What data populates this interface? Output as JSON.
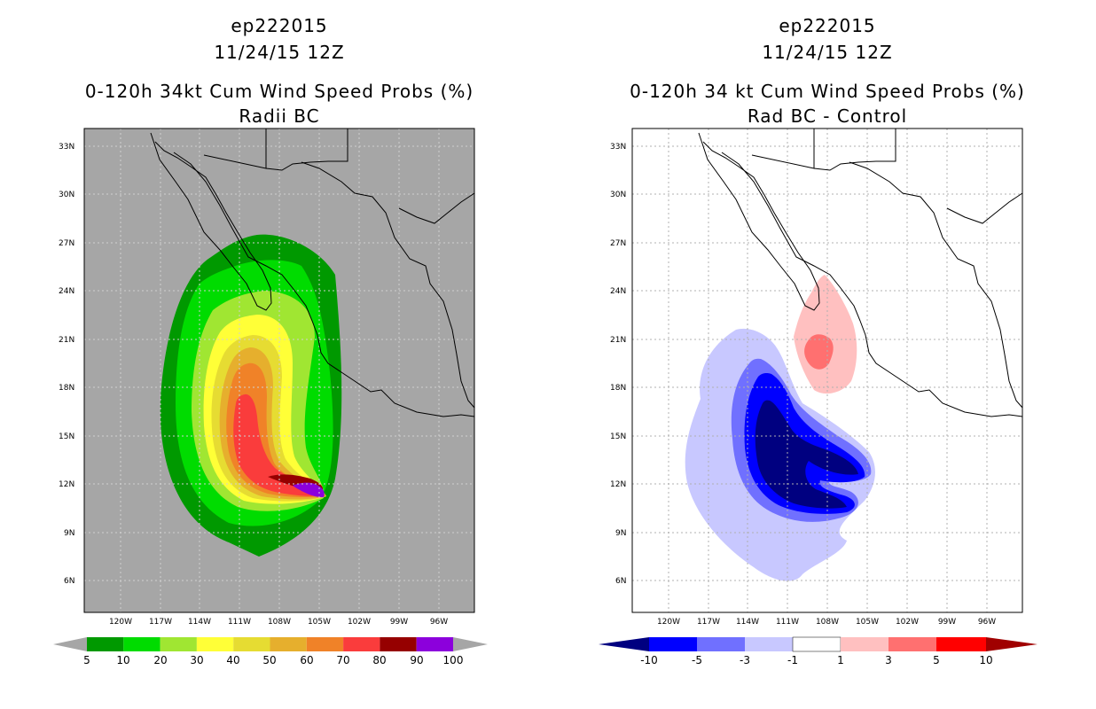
{
  "left": {
    "storm_id": "ep222015",
    "datetime": "11/24/15 12Z",
    "title": "0-120h 34kt Cum Wind Speed Probs (%)",
    "subtitle": "Radii BC",
    "background_color": "#a6a6a6",
    "colorbar": {
      "colors": [
        "#009900",
        "#00dc00",
        "#a0e632",
        "#ffff37",
        "#e6dc32",
        "#e6af2d",
        "#f08228",
        "#fa3c3c",
        "#960000",
        "#8c00dc"
      ],
      "labels": [
        "5",
        "10",
        "20",
        "30",
        "40",
        "50",
        "60",
        "70",
        "80",
        "90",
        "100"
      ]
    }
  },
  "right": {
    "storm_id": "ep222015",
    "datetime": "11/24/15 12Z",
    "title": "0-120h 34 kt Cum Wind Speed Probs (%)",
    "subtitle": "Rad BC - Control",
    "background_color": "#ffffff",
    "colorbar": {
      "colors": [
        "#000080",
        "#0000ff",
        "#7070ff",
        "#c8c8ff",
        "#ffffff",
        "#ffc0c0",
        "#ff7070",
        "#ff0000",
        "#a00000"
      ],
      "labels": [
        "-10",
        "-5",
        "-3",
        "-1",
        "1",
        "3",
        "5",
        "10"
      ]
    }
  },
  "axes": {
    "lat_labels": [
      "33N",
      "30N",
      "27N",
      "24N",
      "21N",
      "18N",
      "15N",
      "12N",
      "9N",
      "6N"
    ],
    "lon_labels": [
      "120W",
      "117W",
      "114W",
      "111W",
      "108W",
      "105W",
      "102W",
      "99W",
      "96W"
    ]
  }
}
